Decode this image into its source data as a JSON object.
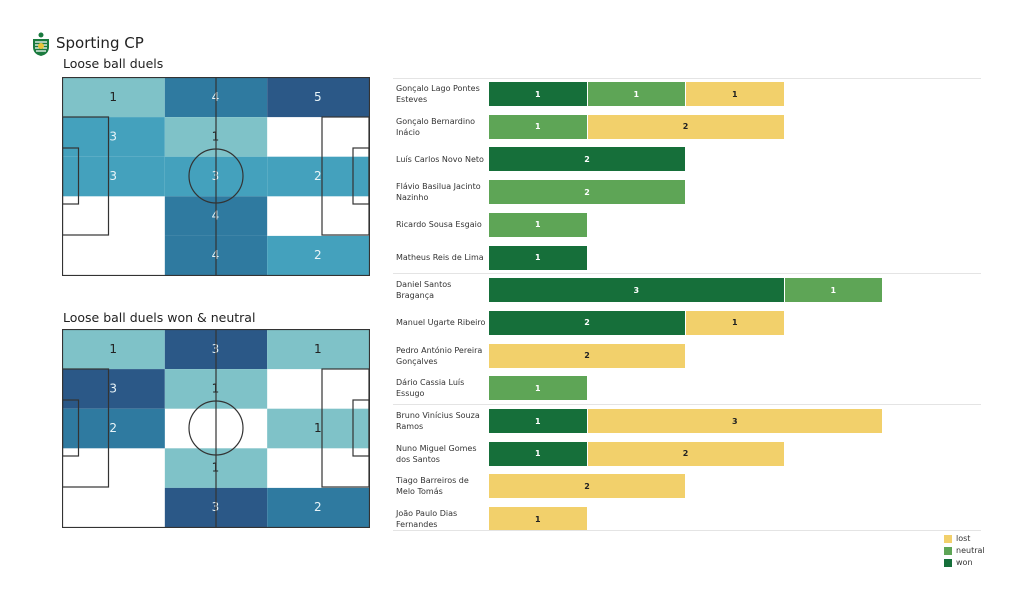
{
  "header": {
    "title": "Sporting CP",
    "logo": "sporting-cp-crest"
  },
  "chart_data": [
    {
      "type": "heatmap",
      "title": "Loose ball duels",
      "rows": 5,
      "cols": 3,
      "values": [
        [
          1,
          4,
          5
        ],
        [
          3,
          1,
          0
        ],
        [
          3,
          3,
          2
        ],
        [
          0,
          4,
          0
        ],
        [
          0,
          4,
          2
        ]
      ]
    },
    {
      "type": "heatmap",
      "title": "Loose ball duels won & neutral",
      "rows": 5,
      "cols": 3,
      "values": [
        [
          1,
          3,
          1
        ],
        [
          3,
          1,
          0
        ],
        [
          2,
          0,
          1
        ],
        [
          0,
          1,
          0
        ],
        [
          0,
          3,
          2
        ]
      ]
    },
    {
      "type": "bar",
      "orientation": "horizontal",
      "stacked": true,
      "legend": [
        "lost",
        "neutral",
        "won"
      ],
      "legend_position": "bottom-right",
      "colors": {
        "won": "#166f3a",
        "neutral": "#5ea556",
        "lost": "#f2d06b"
      },
      "players": [
        {
          "name": "Gonçalo Lago Pontes Esteves",
          "won": 1,
          "neutral": 1,
          "lost": 1
        },
        {
          "name": "Gonçalo Bernardino Inácio",
          "won": 0,
          "neutral": 1,
          "lost": 2
        },
        {
          "name": "Luís Carlos Novo Neto",
          "won": 2,
          "neutral": 0,
          "lost": 0
        },
        {
          "name": "Flávio Basilua Jacinto Nazinho",
          "won": 0,
          "neutral": 2,
          "lost": 0
        },
        {
          "name": "Ricardo Sousa Esgaio",
          "won": 0,
          "neutral": 1,
          "lost": 0
        },
        {
          "name": "Matheus Reis de Lima",
          "won": 1,
          "neutral": 0,
          "lost": 0
        },
        {
          "name": "Daniel Santos Bragança",
          "won": 3,
          "neutral": 1,
          "lost": 0
        },
        {
          "name": "Manuel Ugarte Ribeiro",
          "won": 2,
          "neutral": 0,
          "lost": 1
        },
        {
          "name": "Pedro António Pereira Gonçalves",
          "won": 0,
          "neutral": 0,
          "lost": 2
        },
        {
          "name": "Dário Cassia Luís Essugo",
          "won": 0,
          "neutral": 1,
          "lost": 0
        },
        {
          "name": "Bruno Vinícius Souza Ramos",
          "won": 1,
          "neutral": 0,
          "lost": 3
        },
        {
          "name": "Nuno Miguel Gomes dos Santos",
          "won": 1,
          "neutral": 0,
          "lost": 2
        },
        {
          "name": "Tiago Barreiros de Melo Tomás",
          "won": 0,
          "neutral": 0,
          "lost": 2
        },
        {
          "name": "João Paulo Dias Fernandes",
          "won": 0,
          "neutral": 0,
          "lost": 1
        }
      ],
      "group_breaks_after": [
        5,
        9
      ]
    }
  ]
}
